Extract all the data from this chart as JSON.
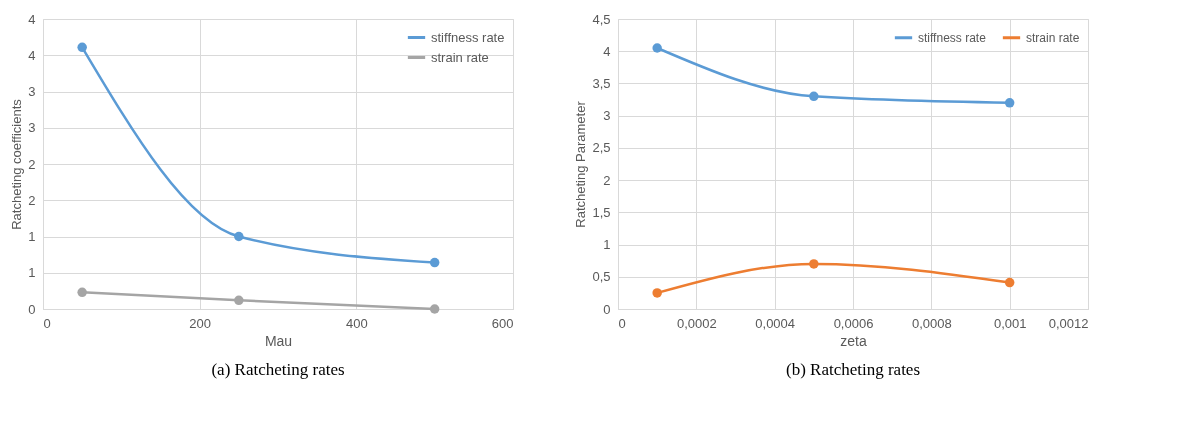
{
  "chart_data": [
    {
      "type": "line",
      "title": "(a) Ratcheting rates",
      "xlabel": "Mau",
      "ylabel": "Ratcheting coefficients",
      "x": [
        50,
        250,
        500
      ],
      "series": [
        {
          "name": "stiffness rate",
          "color": "#5b9bd5",
          "values": [
            3.61,
            1.0,
            0.64
          ]
        },
        {
          "name": "strain rate",
          "color": "#a5a5a5",
          "values": [
            0.23,
            0.12,
            0.0
          ]
        }
      ],
      "xlim": [
        0,
        600
      ],
      "xticks": [
        0,
        200,
        400,
        600
      ],
      "ylim": [
        0,
        4
      ],
      "yticks": [
        0,
        {
          "value": 0.5,
          "label": "1"
        },
        1,
        {
          "value": 1.5,
          "label": "2"
        },
        2,
        {
          "value": 2.5,
          "label": "3"
        },
        3,
        {
          "value": 3.5,
          "label": "4"
        },
        4
      ],
      "grid": true,
      "legend": "top right",
      "marker": "circle",
      "line_style": "solid"
    },
    {
      "type": "line",
      "title": "(b) Ratcheting rates",
      "xlabel": "zeta",
      "ylabel": "Ratcheting Parameter",
      "x": [
        0.0001,
        0.0005,
        0.001
      ],
      "series": [
        {
          "name": "stiffness rate",
          "color": "#5b9bd5",
          "values": [
            4.05,
            3.3,
            3.2
          ]
        },
        {
          "name": "strain rate",
          "color": "#ed7d31",
          "values": [
            0.25,
            0.7,
            0.41
          ]
        }
      ],
      "xlim": [
        0,
        0.0012
      ],
      "xticks": [
        0,
        {
          "value": 0.0002,
          "label": "0,0002"
        },
        {
          "value": 0.0004,
          "label": "0,0004"
        },
        {
          "value": 0.0006,
          "label": "0,0006"
        },
        {
          "value": 0.0008,
          "label": "0,0008"
        },
        {
          "value": 0.001,
          "label": "0,001"
        },
        {
          "value": 0.0012,
          "label": "0,0012"
        }
      ],
      "ylim": [
        0,
        4.5
      ],
      "yticks": [
        0,
        {
          "value": 0.5,
          "label": "0,5"
        },
        1,
        {
          "value": 1.5,
          "label": "1,5"
        },
        2,
        {
          "value": 2.5,
          "label": "2,5"
        },
        3,
        {
          "value": 3.5,
          "label": "3,5"
        },
        4,
        {
          "value": 4.5,
          "label": "4,5"
        }
      ],
      "grid": true,
      "legend": "top right",
      "marker": "circle",
      "line_style": "solid"
    }
  ]
}
